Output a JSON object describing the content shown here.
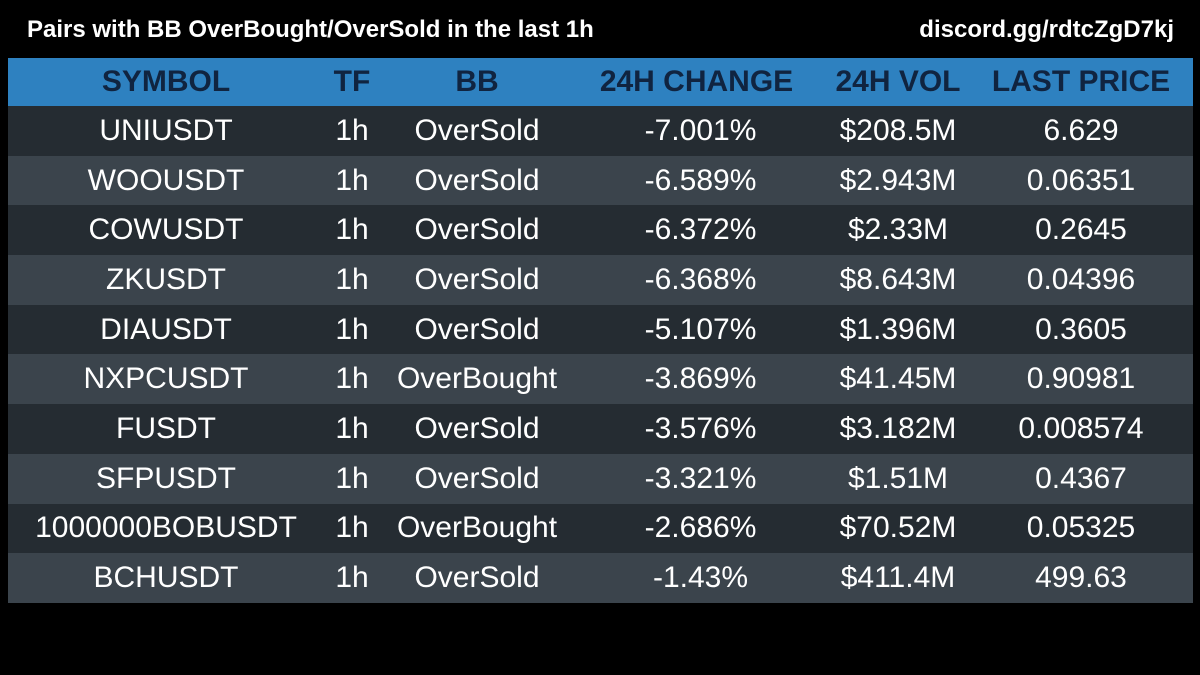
{
  "header": {
    "title": "Pairs with BB OverBought/OverSold in the last 1h",
    "link": "discord.gg/rdtcZgD7kj"
  },
  "table": {
    "columns": [
      "SYMBOL",
      "TF",
      "BB",
      "24H CHANGE",
      "24H VOL",
      "LAST PRICE"
    ],
    "rows": [
      {
        "symbol": "UNIUSDT",
        "tf": "1h",
        "bb": "OverSold",
        "change": "-7.001%",
        "vol": "$208.5M",
        "price": "6.629"
      },
      {
        "symbol": "WOOUSDT",
        "tf": "1h",
        "bb": "OverSold",
        "change": "-6.589%",
        "vol": "$2.943M",
        "price": "0.06351"
      },
      {
        "symbol": "COWUSDT",
        "tf": "1h",
        "bb": "OverSold",
        "change": "-6.372%",
        "vol": "$2.33M",
        "price": "0.2645"
      },
      {
        "symbol": "ZKUSDT",
        "tf": "1h",
        "bb": "OverSold",
        "change": "-6.368%",
        "vol": "$8.643M",
        "price": "0.04396"
      },
      {
        "symbol": "DIAUSDT",
        "tf": "1h",
        "bb": "OverSold",
        "change": "-5.107%",
        "vol": "$1.396M",
        "price": "0.3605"
      },
      {
        "symbol": "NXPCUSDT",
        "tf": "1h",
        "bb": "OverBought",
        "change": "-3.869%",
        "vol": "$41.45M",
        "price": "0.90981"
      },
      {
        "symbol": "FUSDT",
        "tf": "1h",
        "bb": "OverSold",
        "change": "-3.576%",
        "vol": "$3.182M",
        "price": "0.008574"
      },
      {
        "symbol": "SFPUSDT",
        "tf": "1h",
        "bb": "OverSold",
        "change": "-3.321%",
        "vol": "$1.51M",
        "price": "0.4367"
      },
      {
        "symbol": "1000000BOBUSDT",
        "tf": "1h",
        "bb": "OverBought",
        "change": "-2.686%",
        "vol": "$70.52M",
        "price": "0.05325"
      },
      {
        "symbol": "BCHUSDT",
        "tf": "1h",
        "bb": "OverSold",
        "change": "-1.43%",
        "vol": "$411.4M",
        "price": "499.63"
      }
    ]
  },
  "colors": {
    "background": "#000000",
    "header_row": "#2e81c0",
    "header_text": "#102440",
    "row_dark": "#252c32",
    "row_light": "#3b444c",
    "cell_text": "#ffffff"
  }
}
